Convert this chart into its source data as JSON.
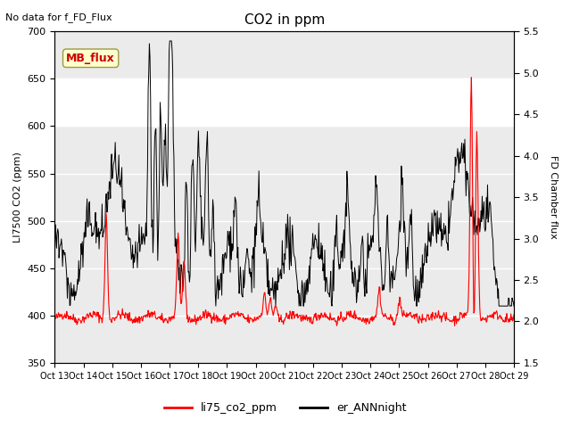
{
  "title": "CO2 in ppm",
  "top_left_text": "No data for f_FD_Flux",
  "ylabel_left": "LI7500 CO2 (ppm)",
  "ylabel_right": "FD Chamber flux",
  "ylim_left": [
    350,
    700
  ],
  "ylim_right": [
    1.5,
    5.5
  ],
  "yticks_left": [
    350,
    400,
    450,
    500,
    550,
    600,
    650,
    700
  ],
  "yticks_right": [
    1.5,
    2.0,
    2.5,
    3.0,
    3.5,
    4.0,
    4.5,
    5.0,
    5.5
  ],
  "xtick_positions": [
    0,
    1,
    2,
    3,
    4,
    5,
    6,
    7,
    8,
    9,
    10,
    11,
    12,
    13,
    14,
    15,
    16
  ],
  "xtick_labels": [
    "Oct 13",
    "Oct 14",
    "Oct 15",
    "Oct 16",
    "Oct 17",
    "Oct 18",
    "Oct 19",
    "Oct 20",
    "Oct 21",
    "Oct 22",
    "Oct 23",
    "Oct 24",
    "Oct 25",
    "Oct 26",
    "Oct 27",
    "Oct 28",
    "Oct 29"
  ],
  "shaded_ymin": 600,
  "shaded_ymax": 650,
  "legend_entries": [
    "li75_co2_ppm",
    "er_ANNnight"
  ],
  "legend_colors": [
    "red",
    "black"
  ],
  "mb_flux_label": "MB_flux",
  "mb_flux_box_color": "#ffffcc",
  "mb_flux_text_color": "#cc0000",
  "line_red_color": "#ff0000",
  "line_black_color": "#000000",
  "background_color": "#ffffff",
  "axes_bg_color": "#ebebeb"
}
